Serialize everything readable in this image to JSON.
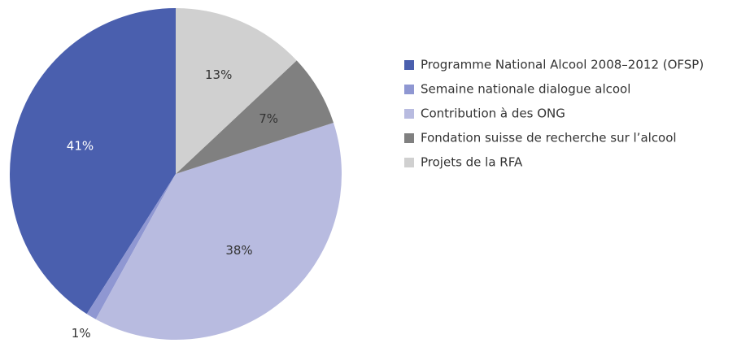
{
  "chart_data": {
    "type": "pie",
    "categories": [
      "Programme National Alcool 2008–2012 (OFSP)",
      "Semaine nationale dialogue alcool",
      "Contribution à des ONG",
      "Fondation suisse de recherche sur l’alcool",
      "Projets de la RFA"
    ],
    "values": [
      41,
      1,
      38,
      7,
      13
    ],
    "value_labels": [
      "41%",
      "1%",
      "38%",
      "7%",
      "13%"
    ],
    "colors": [
      "#4a5fae",
      "#8f97d2",
      "#b8bbe0",
      "#808080",
      "#d0d0d0"
    ],
    "legend": "right"
  }
}
